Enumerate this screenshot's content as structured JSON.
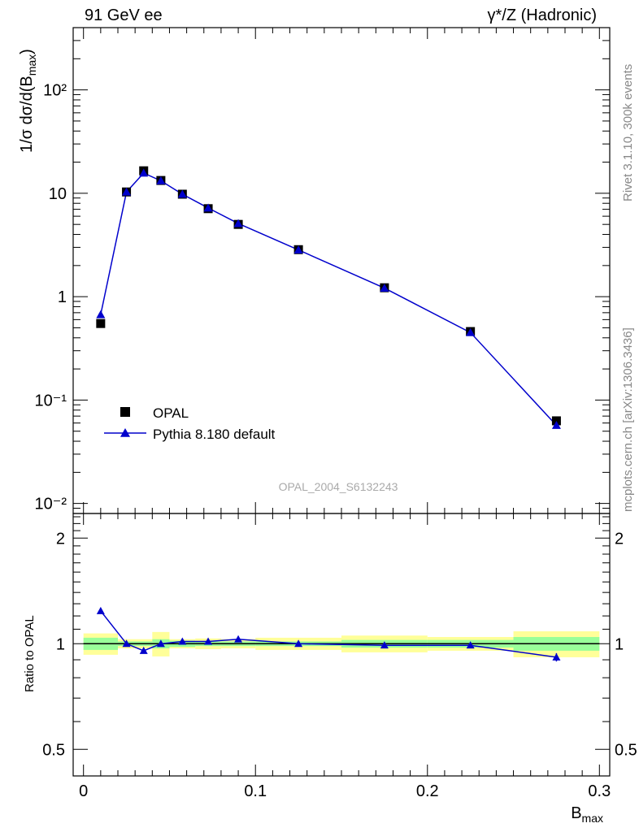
{
  "header": {
    "left": "91 GeV ee",
    "right": "γ*/Z (Hadronic)"
  },
  "side": {
    "rivet": "Rivet 3.1.10,  300k events",
    "mcplots": "mcplots.cern.ch [arXiv:1306.3436]"
  },
  "watermark": "OPAL_2004_S6132243",
  "chart_data": [
    {
      "type": "scatter",
      "ylabel": "1/σ dσ/d(B_max)",
      "yscale": "log",
      "xlim": [
        -0.006,
        0.306
      ],
      "ylim": [
        0.008,
        400
      ],
      "yticks": [
        {
          "v": 0.01,
          "label": "10⁻²"
        },
        {
          "v": 0.1,
          "label": "10⁻¹"
        },
        {
          "v": 1,
          "label": "1"
        },
        {
          "v": 10,
          "label": "10"
        },
        {
          "v": 100,
          "label": "10²"
        }
      ],
      "legend": {
        "placement": "bottom-left"
      },
      "series": [
        {
          "name": "OPAL",
          "marker": "square",
          "color": "#000000",
          "x": [
            0.01,
            0.025,
            0.035,
            0.045,
            0.0575,
            0.0725,
            0.09,
            0.125,
            0.175,
            0.225,
            0.275
          ],
          "y": [
            0.55,
            10.3,
            16.5,
            13.3,
            9.8,
            7.1,
            5.0,
            2.85,
            1.22,
            0.46,
            0.063
          ]
        },
        {
          "name": "Pythia 8.180 default",
          "marker": "triangle",
          "color": "#0000cc",
          "x": [
            0.01,
            0.025,
            0.035,
            0.045,
            0.0575,
            0.0725,
            0.09,
            0.125,
            0.175,
            0.225,
            0.275
          ],
          "y": [
            0.67,
            10.3,
            15.7,
            13.2,
            9.8,
            7.2,
            5.1,
            2.83,
            1.21,
            0.45,
            0.057
          ]
        }
      ]
    },
    {
      "type": "line",
      "ylabel": "Ratio to OPAL",
      "xlabel": "B_max",
      "yscale": "log",
      "xlim": [
        -0.006,
        0.306
      ],
      "ylim": [
        0.42,
        2.35
      ],
      "yticks": [
        {
          "v": 0.5,
          "label": "0.5"
        },
        {
          "v": 1,
          "label": "1"
        },
        {
          "v": 2,
          "label": "2"
        }
      ],
      "xticks": [
        {
          "v": 0,
          "label": "0"
        },
        {
          "v": 0.1,
          "label": "0.1"
        },
        {
          "v": 0.2,
          "label": "0.2"
        },
        {
          "v": 0.3,
          "label": "0.3"
        }
      ],
      "bands": {
        "edges": [
          0,
          0.02,
          0.04,
          0.05,
          0.065,
          0.08,
          0.1,
          0.15,
          0.2,
          0.25,
          0.3
        ],
        "stat_lo": [
          0.96,
          0.985,
          0.97,
          0.98,
          0.985,
          0.985,
          0.985,
          0.975,
          0.975,
          0.955
        ],
        "stat_hi": [
          1.04,
          1.015,
          1.03,
          1.02,
          1.015,
          1.015,
          1.015,
          1.025,
          1.025,
          1.045
        ],
        "tot_lo": [
          0.93,
          0.97,
          0.92,
          0.97,
          0.965,
          0.97,
          0.96,
          0.945,
          0.955,
          0.915
        ],
        "tot_hi": [
          1.07,
          1.03,
          1.08,
          1.03,
          1.035,
          1.03,
          1.04,
          1.055,
          1.045,
          1.085
        ],
        "stat_color": "#99ff99",
        "tot_color": "#ffff99"
      },
      "series": [
        {
          "name": "Pythia 8.180 default",
          "color": "#0000cc",
          "x": [
            0.01,
            0.025,
            0.035,
            0.045,
            0.0575,
            0.0725,
            0.09,
            0.125,
            0.175,
            0.225,
            0.275
          ],
          "y": [
            1.24,
            1.0,
            0.955,
            1.0,
            1.015,
            1.015,
            1.03,
            1.0,
            0.99,
            0.99,
            0.915
          ]
        }
      ]
    }
  ]
}
